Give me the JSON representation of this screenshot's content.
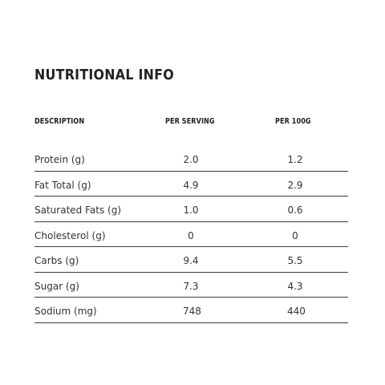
{
  "title": "NUTRITIONAL INFO",
  "columns": {
    "description": "DESCRIPTION",
    "per_serving": "PER SERVING",
    "per_100g": "PER 100G"
  },
  "rows": [
    {
      "label": "Protein (g)",
      "per_serving": "2.0",
      "per_100g": "1.2"
    },
    {
      "label": "Fat Total (g)",
      "per_serving": "4.9",
      "per_100g": "2.9"
    },
    {
      "label": "Saturated Fats (g)",
      "per_serving": "1.0",
      "per_100g": "0.6"
    },
    {
      "label": "Cholesterol (g)",
      "per_serving": "0",
      "per_100g": "0"
    },
    {
      "label": "Carbs (g)",
      "per_serving": "9.4",
      "per_100g": "5.5"
    },
    {
      "label": "Sugar (g)",
      "per_serving": "7.3",
      "per_100g": "4.3"
    },
    {
      "label": "Sodium (mg)",
      "per_serving": "748",
      "per_100g": "440"
    }
  ]
}
